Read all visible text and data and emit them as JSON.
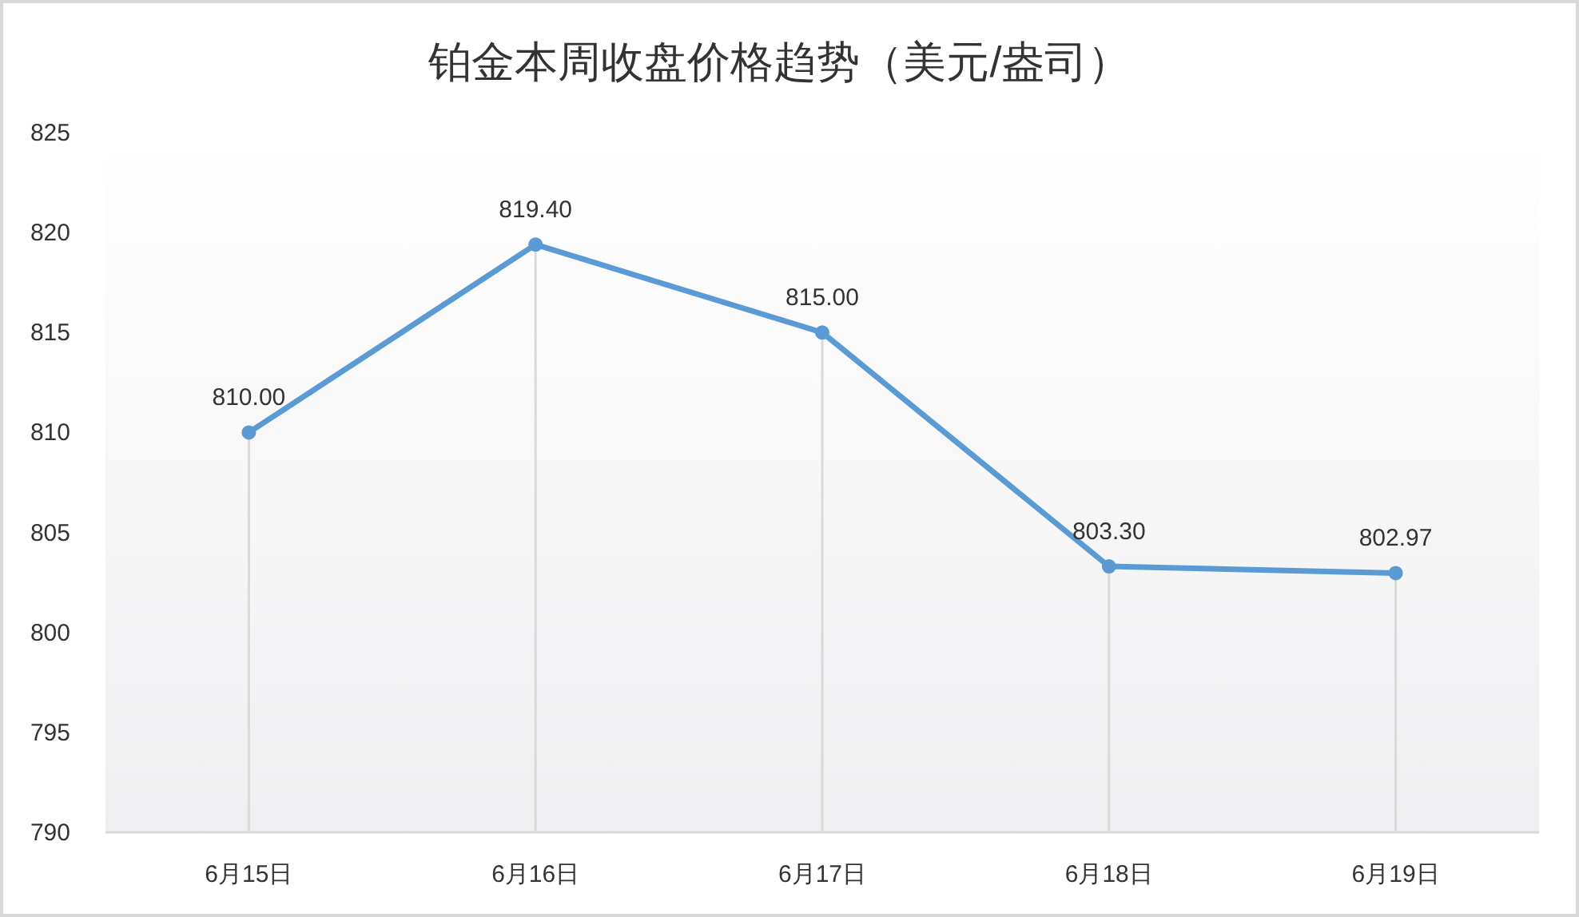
{
  "chart_data": {
    "type": "line",
    "title": "铂金本周收盘价格趋势（美元/盎司）",
    "categories": [
      "6月15日",
      "6月16日",
      "6月17日",
      "6月18日",
      "6月19日"
    ],
    "ylim": [
      790,
      825
    ],
    "yticks": [
      790,
      795,
      800,
      805,
      810,
      815,
      820,
      825
    ],
    "series": [
      {
        "color": "#5b9bd5",
        "line_style": "solid",
        "values": [
          810,
          819.4,
          815,
          803.3,
          802.97
        ],
        "value_labels": [
          "810.00",
          "819.40",
          "815.00",
          "803.30",
          "802.97"
        ]
      },
      {
        "type": "lollipop",
        "color": "#5b9bd5",
        "marker": "circle",
        "values": [
          810,
          819.4,
          815,
          803.3,
          802.97
        ]
      }
    ]
  }
}
